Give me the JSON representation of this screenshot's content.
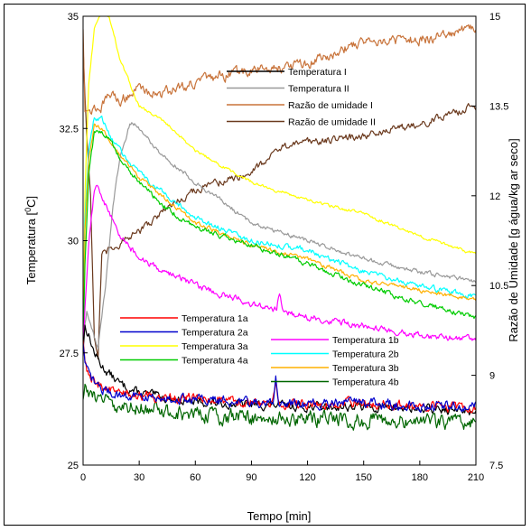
{
  "chart_data": {
    "type": "line",
    "xlabel": "Tempo [min]",
    "ylabel_left": "Temperatura [",
    "ylabel_left_sup": "0",
    "ylabel_left_end": "C]",
    "ylabel_right": "Razão de Umidade [g água/kg ar seco]",
    "xlim": [
      0,
      210
    ],
    "ylim_left": [
      25,
      35
    ],
    "ylim_right": [
      7.5,
      15
    ],
    "x_ticks": [
      "0",
      "30",
      "60",
      "90",
      "120",
      "150",
      "180",
      "210"
    ],
    "y_left_ticks": [
      "25",
      "27.5",
      "30",
      "32.5",
      "35"
    ],
    "y_right_ticks": [
      "7.5",
      "9",
      "10.5",
      "12",
      "13.5",
      "15"
    ],
    "grid": false,
    "legend_upper": [
      {
        "name": "Temperatura I",
        "color": "#000000"
      },
      {
        "name": "Temperatura II",
        "color": "#999999"
      },
      {
        "name": "Razão de umidade I",
        "color": "#c8733a"
      },
      {
        "name": "Razão de umidade II",
        "color": "#6b3a1e"
      }
    ],
    "legend_lower_left": [
      {
        "name": "Temperatura 1a",
        "color": "#ff0000"
      },
      {
        "name": "Temperatura 2a",
        "color": "#0000cc"
      },
      {
        "name": "Temperatura 3a",
        "color": "#ffff00"
      },
      {
        "name": "Temperatura 4a",
        "color": "#00cc00"
      }
    ],
    "legend_lower_right": [
      {
        "name": "Temperatura 1b",
        "color": "#ff00ff"
      },
      {
        "name": "Temperatura 2b",
        "color": "#00ffff"
      },
      {
        "name": "Temperatura 3b",
        "color": "#ffb000"
      },
      {
        "name": "Temperatura 4b",
        "color": "#006600"
      }
    ],
    "series": [
      {
        "name": "Temperatura I",
        "axis": "left",
        "color": "#000000",
        "noise": 0.08,
        "x": [
          0,
          1,
          3,
          6,
          10,
          15,
          20,
          30,
          45,
          60,
          90,
          120,
          150,
          180,
          210
        ],
        "y": [
          27.6,
          28.1,
          27.9,
          27.5,
          27.2,
          27.0,
          26.8,
          26.6,
          26.5,
          26.4,
          26.35,
          26.3,
          26.3,
          26.25,
          26.2
        ]
      },
      {
        "name": "Temperatura II",
        "axis": "left",
        "color": "#999999",
        "noise": 0.04,
        "x": [
          0,
          2,
          5,
          8,
          12,
          16,
          20,
          25,
          28,
          40,
          60,
          90,
          120,
          150,
          180,
          210
        ],
        "y": [
          27.8,
          28.4,
          28.0,
          27.6,
          29.0,
          30.8,
          31.9,
          32.6,
          32.6,
          32.0,
          31.3,
          30.4,
          30.0,
          29.6,
          29.3,
          29.1
        ]
      },
      {
        "name": "Razão de umidade I",
        "axis": "right",
        "color": "#c8733a",
        "noise": 0.07,
        "x": [
          0,
          1,
          3,
          6,
          10,
          15,
          20,
          25,
          30,
          40,
          60,
          90,
          120,
          150,
          180,
          210
        ],
        "y": [
          14.8,
          13.5,
          13.4,
          13.45,
          13.5,
          13.7,
          13.6,
          13.7,
          13.8,
          13.7,
          13.9,
          14.1,
          14.2,
          14.6,
          14.6,
          14.8
        ]
      },
      {
        "name": "Razão de umidade II",
        "axis": "right",
        "color": "#6b3a1e",
        "noise": 0.05,
        "x": [
          0,
          1,
          2,
          4,
          6,
          8,
          10,
          15,
          20,
          30,
          45,
          60,
          90,
          105,
          120,
          150,
          180,
          210
        ],
        "y": [
          14.5,
          13.7,
          13.0,
          12.0,
          9.6,
          9.3,
          11.0,
          11.1,
          11.2,
          11.4,
          11.8,
          12.1,
          12.4,
          12.8,
          12.9,
          13.0,
          13.2,
          13.5
        ]
      },
      {
        "name": "Temperatura 1a",
        "axis": "left",
        "color": "#ff0000",
        "noise": 0.09,
        "spike_x": 103,
        "spike_y": 0.5,
        "x": [
          0,
          1,
          3,
          6,
          10,
          20,
          40,
          60,
          90,
          120,
          150,
          180,
          210
        ],
        "y": [
          27.8,
          27.3,
          27.0,
          26.9,
          26.75,
          26.6,
          26.5,
          26.5,
          26.4,
          26.35,
          26.4,
          26.3,
          26.3
        ]
      },
      {
        "name": "Temperatura 2a",
        "axis": "left",
        "color": "#0000cc",
        "noise": 0.09,
        "spike_x": 103,
        "spike_y": 0.55,
        "x": [
          0,
          1,
          3,
          6,
          10,
          20,
          40,
          60,
          90,
          120,
          150,
          180,
          210
        ],
        "y": [
          27.7,
          27.2,
          27.0,
          26.85,
          26.7,
          26.55,
          26.5,
          26.45,
          26.4,
          26.35,
          26.4,
          26.3,
          26.3
        ]
      },
      {
        "name": "Temperatura 3a",
        "axis": "left",
        "color": "#ffff00",
        "noise": 0.03,
        "x": [
          0,
          1,
          3,
          6,
          10,
          14,
          20,
          30,
          45,
          60,
          90,
          120,
          150,
          180,
          210
        ],
        "y": [
          27.9,
          31.0,
          33.5,
          34.7,
          35.1,
          35.0,
          34.0,
          33.0,
          32.6,
          32.0,
          31.3,
          30.9,
          30.6,
          30.1,
          29.7
        ]
      },
      {
        "name": "Temperatura 4a",
        "axis": "left",
        "color": "#00cc00",
        "noise": 0.05,
        "x": [
          0,
          1,
          3,
          6,
          10,
          15,
          20,
          30,
          45,
          60,
          90,
          120,
          150,
          180,
          210
        ],
        "y": [
          27.5,
          29.5,
          31.5,
          32.4,
          32.45,
          32.2,
          31.8,
          31.3,
          30.7,
          30.3,
          29.9,
          29.5,
          29.0,
          28.6,
          28.3
        ]
      },
      {
        "name": "Temperatura 1b",
        "axis": "left",
        "color": "#ff00ff",
        "noise": 0.06,
        "spike_x": 105,
        "spike_y": 0.4,
        "x": [
          0,
          1,
          3,
          6,
          8,
          12,
          20,
          30,
          45,
          60,
          90,
          120,
          150,
          180,
          210
        ],
        "y": [
          27.4,
          28.5,
          30.0,
          31.1,
          31.2,
          30.8,
          30.1,
          29.6,
          29.3,
          29.0,
          28.6,
          28.3,
          28.1,
          27.9,
          27.8
        ]
      },
      {
        "name": "Temperatura 2b",
        "axis": "left",
        "color": "#00ffff",
        "noise": 0.05,
        "x": [
          0,
          1,
          3,
          6,
          10,
          15,
          20,
          30,
          45,
          60,
          90,
          120,
          150,
          180,
          210
        ],
        "y": [
          27.6,
          30.5,
          32.0,
          32.75,
          32.7,
          32.3,
          32.0,
          31.5,
          31.0,
          30.5,
          30.0,
          29.8,
          29.3,
          29.0,
          28.75
        ]
      },
      {
        "name": "Temperatura 3b",
        "axis": "left",
        "color": "#ffb000",
        "noise": 0.04,
        "x": [
          0,
          1,
          3,
          6,
          10,
          15,
          20,
          30,
          45,
          60,
          90,
          120,
          150,
          180,
          210
        ],
        "y": [
          27.6,
          30.2,
          31.8,
          32.55,
          32.5,
          32.2,
          31.9,
          31.4,
          30.9,
          30.4,
          29.9,
          29.6,
          29.1,
          28.9,
          28.7
        ]
      },
      {
        "name": "Temperatura 4b",
        "axis": "left",
        "color": "#006600",
        "noise": 0.14,
        "x": [
          0,
          1,
          3,
          6,
          10,
          20,
          40,
          60,
          90,
          120,
          150,
          180,
          210
        ],
        "y": [
          26.6,
          26.7,
          26.6,
          26.5,
          26.45,
          26.35,
          26.2,
          26.1,
          26.05,
          26.05,
          26.0,
          26.0,
          25.95
        ]
      }
    ]
  }
}
